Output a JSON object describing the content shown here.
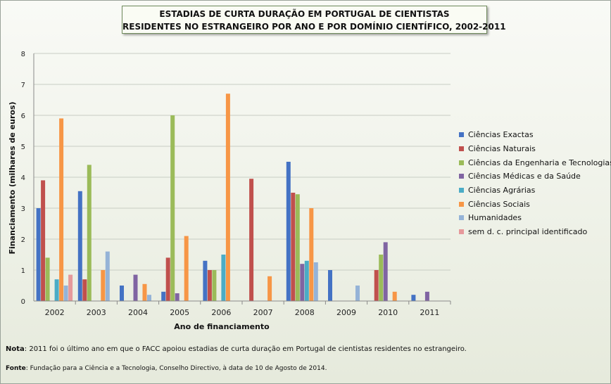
{
  "chart_data": {
    "type": "bar",
    "title_line1": "ESTADIAS DE CURTA DURAÇÃO EM PORTUGAL DE CIENTISTAS",
    "title_line2": "RESIDENTES NO ESTRANGEIRO POR ANO E POR DOMÍNIO CIENTÍFICO, 2002-2011",
    "xlabel": "Ano de financiamento",
    "ylabel": "Financiamento (milhares de euros)",
    "ylim": [
      0,
      8
    ],
    "yticks": [
      "0",
      "1",
      "2",
      "3",
      "4",
      "5",
      "6",
      "7",
      "8"
    ],
    "categories": [
      "2002",
      "2003",
      "2004",
      "2005",
      "2006",
      "2007",
      "2008",
      "2009",
      "2010",
      "2011"
    ],
    "grid": true,
    "legend_position": "right",
    "series": [
      {
        "name": "Ciências Exactas",
        "color": "#4472c4",
        "values": [
          3.0,
          3.55,
          0.5,
          0.3,
          1.3,
          0,
          4.5,
          1.0,
          0,
          0.2
        ]
      },
      {
        "name": "Ciências Naturais",
        "color": "#c0504d",
        "values": [
          3.9,
          0.7,
          0,
          1.4,
          1.0,
          3.95,
          3.5,
          0,
          1.0,
          0
        ]
      },
      {
        "name": "Ciências da Engenharia e Tecnologias",
        "color": "#9bbb59",
        "values": [
          1.4,
          4.4,
          0,
          6.0,
          1.0,
          0,
          3.45,
          0,
          1.5,
          0
        ]
      },
      {
        "name": "Ciências Médicas e da Saúde",
        "color": "#8064a2",
        "values": [
          0,
          0,
          0.85,
          0.25,
          0,
          0,
          1.2,
          0,
          1.9,
          0.3
        ]
      },
      {
        "name": "Ciências Agrárias",
        "color": "#4bacc6",
        "values": [
          0.7,
          0,
          0,
          0,
          1.5,
          0,
          1.3,
          0,
          0,
          0
        ]
      },
      {
        "name": "Ciências Sociais",
        "color": "#f79646",
        "values": [
          5.9,
          1.0,
          0.55,
          2.1,
          6.7,
          0.8,
          3.0,
          0,
          0.3,
          0
        ]
      },
      {
        "name": "Humanidades",
        "color": "#95b3d7",
        "values": [
          0.5,
          1.6,
          0.2,
          0,
          0,
          0,
          1.25,
          0.5,
          0,
          0
        ]
      },
      {
        "name": "sem d. c. principal identificado",
        "color": "#e6999b",
        "values": [
          0.85,
          0,
          0,
          0,
          0,
          0,
          0,
          0,
          0,
          0
        ]
      }
    ]
  },
  "footer": {
    "note_label": "Nota",
    "note_text": ": 2011 foi o último ano em que o FACC apoiou estadias de curta duração em Portugal de cientistas residentes no estrangeiro.",
    "source_label": "Fonte",
    "source_text": ": Fundação para a Ciência e a Tecnologia, Conselho Directivo, à data de 10 de Agosto de 2014."
  }
}
